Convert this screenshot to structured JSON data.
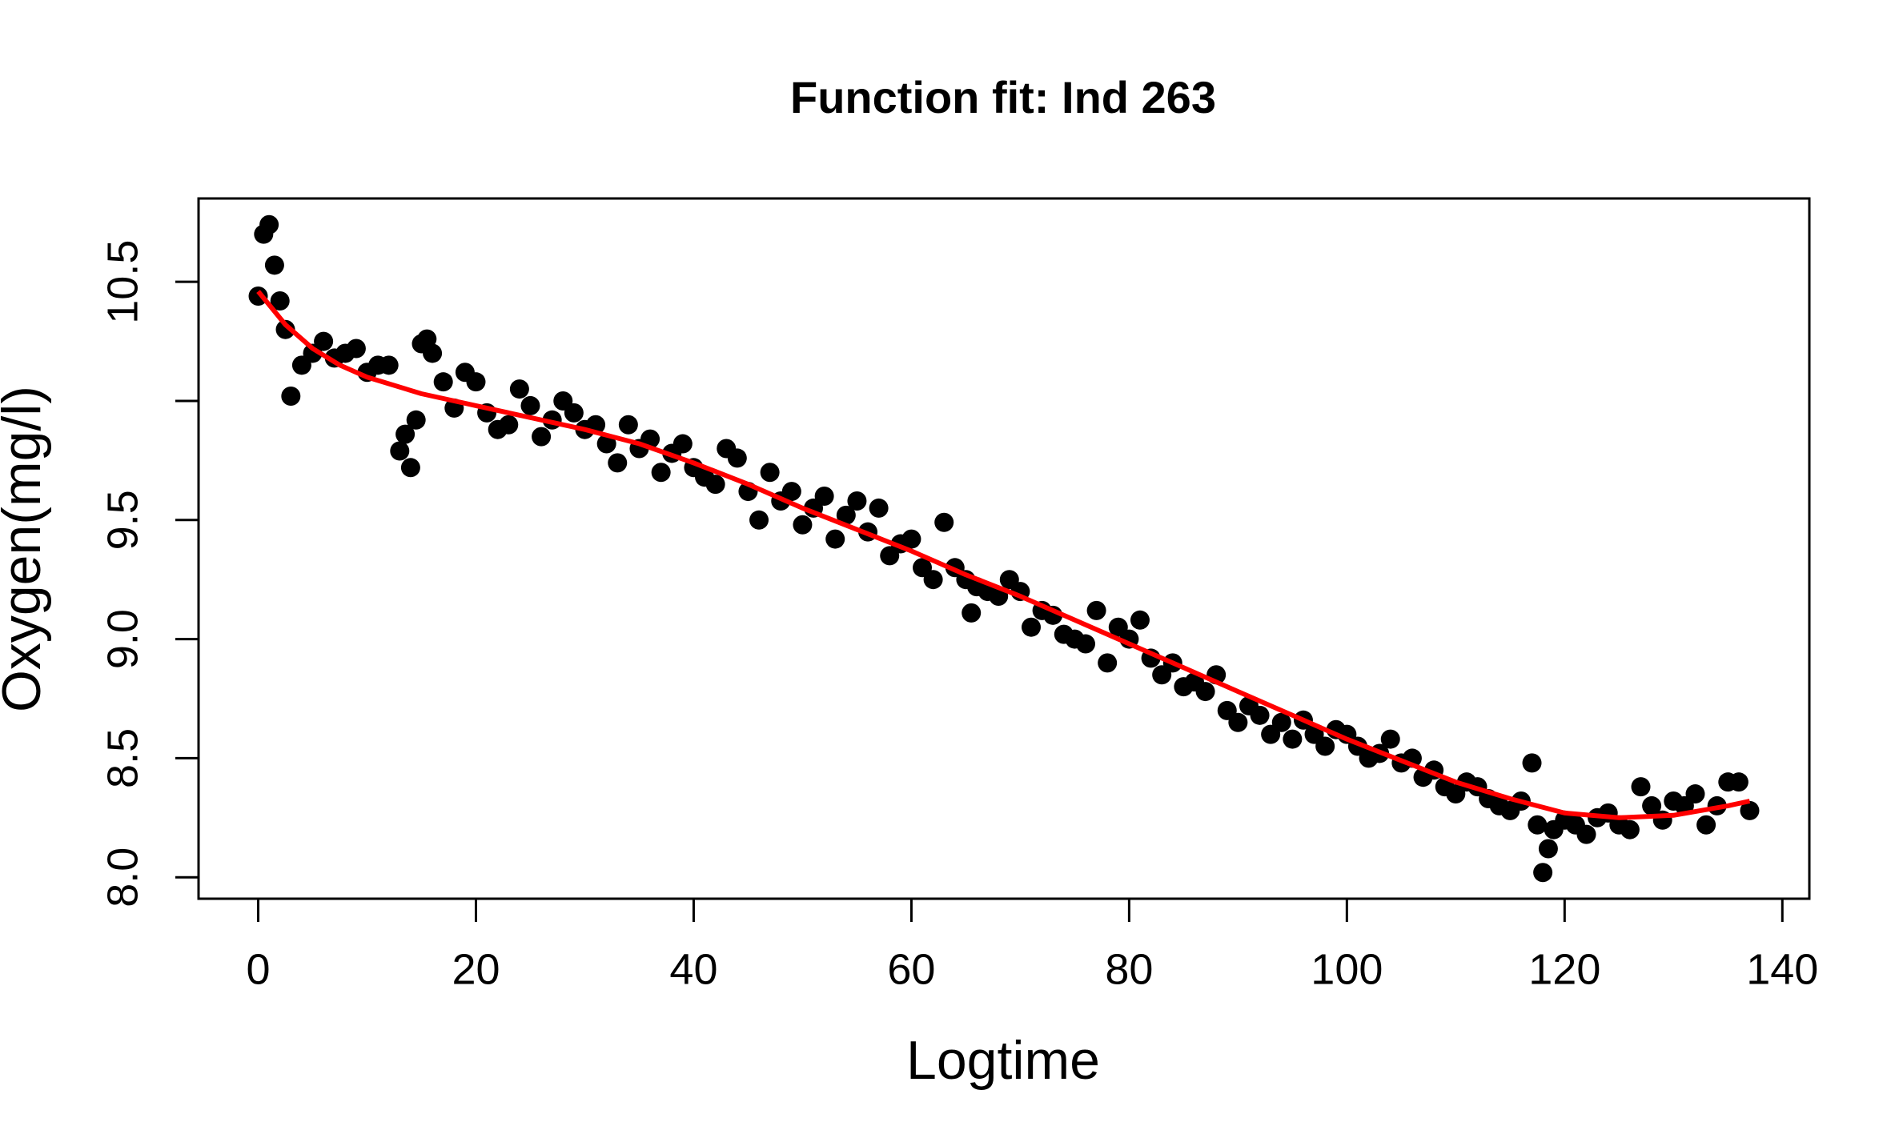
{
  "chart_data": {
    "type": "scatter",
    "title": "Function fit: Ind 263",
    "x_label": "Logtime",
    "y_label": "Oxygen(mg/l)",
    "xlim": [
      -5.48,
      142.48
    ],
    "ylim": [
      7.91,
      10.85
    ],
    "xticks": [
      0,
      20,
      40,
      60,
      80,
      100,
      120,
      140
    ],
    "yticks": [
      {
        "value": 8,
        "label": "8.0"
      },
      8.5,
      {
        "value": 9,
        "label": "9.0"
      },
      9.5,
      {
        "value": 10,
        "label": null
      },
      10.5
    ],
    "points": {
      "color": "#000000",
      "x": [
        0,
        0.5,
        1,
        1.5,
        2,
        2.5,
        3,
        4,
        5,
        6,
        7,
        8,
        9,
        10,
        11,
        12,
        13,
        13.5,
        14,
        14.5,
        15,
        15.5,
        16,
        17,
        18,
        19,
        20,
        21,
        22,
        23,
        24,
        25,
        26,
        27,
        28,
        29,
        30,
        31,
        32,
        33,
        34,
        35,
        36,
        37,
        38,
        39,
        40,
        41,
        42,
        43,
        44,
        45,
        46,
        47,
        48,
        49,
        50,
        51,
        52,
        53,
        54,
        55,
        56,
        57,
        58,
        59,
        60,
        61,
        62,
        63,
        64,
        65,
        65.5,
        66,
        67,
        68,
        69,
        70,
        71,
        72,
        73,
        74,
        75,
        76,
        77,
        78,
        79,
        80,
        81,
        82,
        83,
        84,
        85,
        86,
        87,
        88,
        89,
        90,
        91,
        92,
        93,
        94,
        95,
        96,
        97,
        98,
        99,
        100,
        101,
        102,
        103,
        104,
        105,
        106,
        107,
        108,
        109,
        110,
        111,
        112,
        113,
        114,
        115,
        116,
        117,
        117.5,
        118,
        118.5,
        119,
        120,
        121,
        122,
        123,
        124,
        125,
        126,
        127,
        128,
        129,
        130,
        131,
        132,
        133,
        134,
        135,
        136,
        137
      ],
      "y": [
        10.44,
        10.7,
        10.74,
        10.57,
        10.42,
        10.3,
        10.02,
        10.15,
        10.2,
        10.25,
        10.18,
        10.2,
        10.22,
        10.12,
        10.15,
        10.15,
        9.79,
        9.86,
        9.72,
        9.92,
        10.24,
        10.26,
        10.2,
        10.08,
        9.97,
        10.12,
        10.08,
        9.95,
        9.88,
        9.9,
        10.05,
        9.98,
        9.85,
        9.92,
        10.0,
        9.95,
        9.88,
        9.9,
        9.82,
        9.74,
        9.9,
        9.8,
        9.84,
        9.7,
        9.78,
        9.82,
        9.72,
        9.68,
        9.65,
        9.8,
        9.76,
        9.62,
        9.5,
        9.7,
        9.58,
        9.62,
        9.48,
        9.55,
        9.6,
        9.42,
        9.52,
        9.58,
        9.45,
        9.55,
        9.35,
        9.4,
        9.42,
        9.3,
        9.25,
        9.49,
        9.3,
        9.25,
        9.11,
        9.22,
        9.2,
        9.18,
        9.25,
        9.2,
        9.05,
        9.12,
        9.1,
        9.02,
        9.0,
        8.98,
        9.12,
        8.9,
        9.05,
        9.0,
        9.08,
        8.92,
        8.85,
        8.9,
        8.8,
        8.82,
        8.78,
        8.85,
        8.7,
        8.65,
        8.72,
        8.68,
        8.6,
        8.65,
        8.58,
        8.66,
        8.6,
        8.55,
        8.62,
        8.6,
        8.55,
        8.5,
        8.52,
        8.58,
        8.48,
        8.5,
        8.42,
        8.45,
        8.38,
        8.35,
        8.4,
        8.38,
        8.33,
        8.3,
        8.28,
        8.32,
        8.48,
        8.22,
        8.02,
        8.12,
        8.2,
        8.24,
        8.22,
        8.18,
        8.25,
        8.27,
        8.22,
        8.2,
        8.38,
        8.3,
        8.24,
        8.32,
        8.3,
        8.35,
        8.22,
        8.3,
        8.4,
        8.4,
        8.28
      ]
    },
    "fit": {
      "color": "#ff0000",
      "x": [
        0,
        2.5,
        5,
        7.5,
        10,
        15,
        20,
        25,
        30,
        35,
        40,
        45,
        50,
        55,
        60,
        65,
        70,
        75,
        80,
        85,
        90,
        95,
        100,
        105,
        110,
        115,
        120,
        125,
        130,
        135,
        137
      ],
      "y": [
        10.46,
        10.32,
        10.22,
        10.15,
        10.1,
        10.03,
        9.98,
        9.93,
        9.88,
        9.82,
        9.74,
        9.65,
        9.55,
        9.46,
        9.37,
        9.27,
        9.18,
        9.08,
        8.98,
        8.88,
        8.78,
        8.68,
        8.58,
        8.49,
        8.4,
        8.33,
        8.27,
        8.25,
        8.26,
        8.3,
        8.32
      ]
    }
  }
}
